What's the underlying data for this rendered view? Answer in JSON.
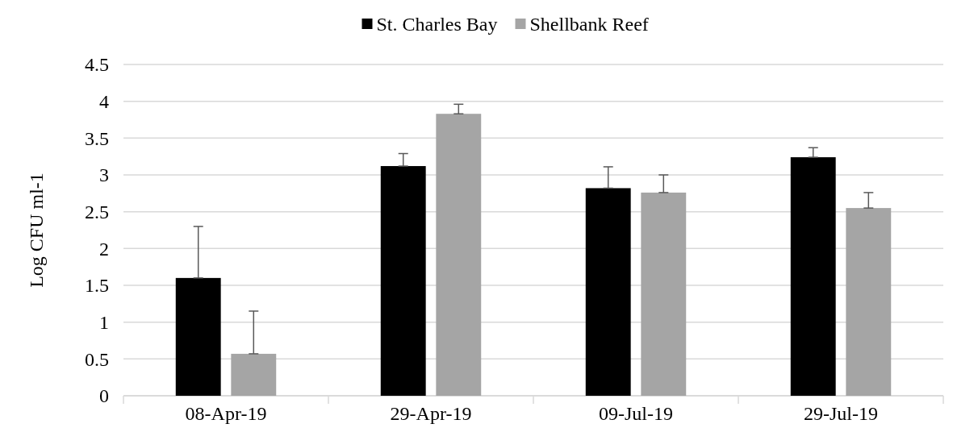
{
  "chart_data": {
    "type": "bar",
    "ylabel": "Log CFU ml-1",
    "categories": [
      "08-Apr-19",
      "29-Apr-19",
      "09-Jul-19",
      "29-Jul-19"
    ],
    "series": [
      {
        "name": "St. Charles Bay",
        "color": "#000000",
        "values": [
          1.6,
          3.12,
          2.82,
          3.24
        ],
        "errors": [
          [
            1.6,
            2.3
          ],
          [
            3.12,
            3.29
          ],
          [
            2.82,
            3.11
          ],
          [
            3.24,
            3.37
          ]
        ]
      },
      {
        "name": "Shellbank Reef",
        "color": "#a5a5a5",
        "values": [
          0.57,
          3.83,
          2.76,
          2.55
        ],
        "errors": [
          [
            0.57,
            1.15
          ],
          [
            3.83,
            3.96
          ],
          [
            2.76,
            3.0
          ],
          [
            2.55,
            2.76
          ]
        ]
      }
    ],
    "ylim": [
      0,
      4.5
    ],
    "yticks": [
      0,
      0.5,
      1,
      1.5,
      2,
      2.5,
      3,
      3.5,
      4,
      4.5
    ],
    "grid": "y",
    "legend": "top"
  }
}
